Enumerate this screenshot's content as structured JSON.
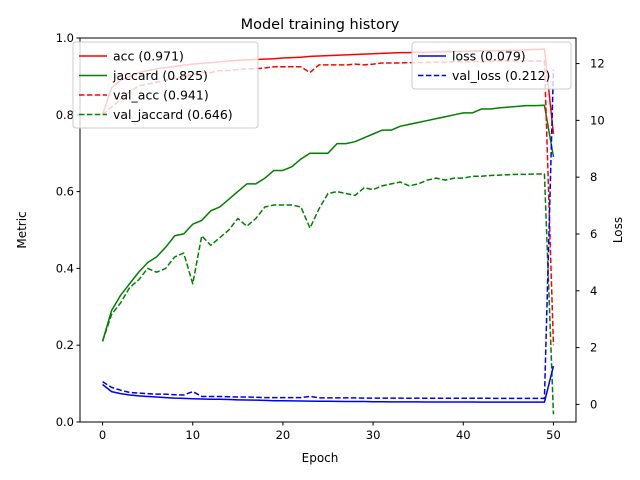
{
  "chart_data": {
    "type": "line",
    "title": "Model training history",
    "xlabel": "Epoch",
    "ylabel": "Metric",
    "y2label": "Loss",
    "xlim": [
      -2.5,
      52.5
    ],
    "ylim": [
      0,
      1
    ],
    "y2lim": [
      -0.62,
      12.9
    ],
    "xticks": [
      0,
      10,
      20,
      30,
      40,
      50
    ],
    "yticks": [
      0.0,
      0.2,
      0.4,
      0.6,
      0.8,
      1.0
    ],
    "y2ticks": [
      0,
      2,
      4,
      6,
      8,
      10,
      12
    ],
    "x": [
      0,
      1,
      2,
      3,
      4,
      5,
      6,
      7,
      8,
      9,
      10,
      11,
      12,
      13,
      14,
      15,
      16,
      17,
      18,
      19,
      20,
      21,
      22,
      23,
      24,
      25,
      26,
      27,
      28,
      29,
      30,
      31,
      32,
      33,
      34,
      35,
      36,
      37,
      38,
      39,
      40,
      41,
      42,
      43,
      44,
      45,
      46,
      47,
      48,
      49,
      50
    ],
    "legend_left": [
      "acc (0.971)",
      "jaccard (0.825)",
      "val_acc (0.941)",
      "val_jaccard (0.646)"
    ],
    "legend_right": [
      "loss (0.079)",
      "val_loss (0.212)"
    ],
    "series": [
      {
        "name": "acc",
        "label": "acc (0.971)",
        "axis": "left",
        "color": "#ff0000",
        "dash": "solid",
        "values": [
          0.8,
          0.87,
          0.89,
          0.9,
          0.91,
          0.915,
          0.92,
          0.923,
          0.926,
          0.929,
          0.932,
          0.934,
          0.936,
          0.938,
          0.94,
          0.942,
          0.943,
          0.944,
          0.945,
          0.946,
          0.948,
          0.949,
          0.95,
          0.952,
          0.953,
          0.954,
          0.955,
          0.956,
          0.957,
          0.958,
          0.959,
          0.96,
          0.961,
          0.962,
          0.962,
          0.963,
          0.963,
          0.964,
          0.964,
          0.965,
          0.965,
          0.966,
          0.966,
          0.967,
          0.967,
          0.968,
          0.968,
          0.969,
          0.97,
          0.971,
          0.75
        ]
      },
      {
        "name": "jaccard",
        "label": "jaccard (0.825)",
        "axis": "left",
        "color": "#008000",
        "dash": "solid",
        "values": [
          0.21,
          0.29,
          0.33,
          0.36,
          0.39,
          0.415,
          0.43,
          0.455,
          0.485,
          0.49,
          0.515,
          0.525,
          0.55,
          0.56,
          0.58,
          0.6,
          0.62,
          0.62,
          0.635,
          0.655,
          0.655,
          0.665,
          0.685,
          0.7,
          0.7,
          0.7,
          0.725,
          0.725,
          0.73,
          0.74,
          0.75,
          0.76,
          0.76,
          0.77,
          0.775,
          0.78,
          0.785,
          0.79,
          0.795,
          0.8,
          0.805,
          0.805,
          0.815,
          0.815,
          0.818,
          0.82,
          0.822,
          0.824,
          0.824,
          0.825,
          0.69
        ]
      },
      {
        "name": "val_acc",
        "label": "val_acc (0.941)",
        "axis": "left",
        "color": "#ff0000",
        "dash": "dashed",
        "values": [
          0.8,
          0.82,
          0.84,
          0.86,
          0.875,
          0.88,
          0.885,
          0.89,
          0.895,
          0.9,
          0.905,
          0.91,
          0.91,
          0.915,
          0.915,
          0.918,
          0.92,
          0.92,
          0.922,
          0.925,
          0.925,
          0.925,
          0.925,
          0.91,
          0.93,
          0.93,
          0.93,
          0.93,
          0.932,
          0.93,
          0.932,
          0.935,
          0.935,
          0.935,
          0.936,
          0.936,
          0.936,
          0.937,
          0.937,
          0.938,
          0.938,
          0.938,
          0.939,
          0.939,
          0.94,
          0.94,
          0.94,
          0.94,
          0.94,
          0.941,
          0.2
        ]
      },
      {
        "name": "val_jaccard",
        "label": "val_jaccard (0.646)",
        "axis": "left",
        "color": "#008000",
        "dash": "dashed",
        "values": [
          0.21,
          0.28,
          0.31,
          0.35,
          0.37,
          0.4,
          0.39,
          0.4,
          0.43,
          0.44,
          0.36,
          0.485,
          0.46,
          0.48,
          0.5,
          0.53,
          0.51,
          0.53,
          0.56,
          0.565,
          0.565,
          0.565,
          0.56,
          0.505,
          0.555,
          0.595,
          0.6,
          0.595,
          0.59,
          0.61,
          0.605,
          0.615,
          0.62,
          0.625,
          0.615,
          0.62,
          0.63,
          0.635,
          0.63,
          0.635,
          0.635,
          0.64,
          0.64,
          0.642,
          0.643,
          0.644,
          0.645,
          0.645,
          0.646,
          0.646,
          0.02
        ]
      },
      {
        "name": "loss",
        "label": "loss (0.079)",
        "axis": "right",
        "color": "#0000ff",
        "dash": "solid",
        "values": [
          0.7,
          0.45,
          0.38,
          0.33,
          0.3,
          0.28,
          0.26,
          0.24,
          0.22,
          0.21,
          0.2,
          0.19,
          0.18,
          0.18,
          0.17,
          0.16,
          0.155,
          0.15,
          0.14,
          0.13,
          0.13,
          0.125,
          0.12,
          0.115,
          0.11,
          0.11,
          0.105,
          0.1,
          0.1,
          0.1,
          0.095,
          0.095,
          0.09,
          0.09,
          0.09,
          0.088,
          0.086,
          0.085,
          0.084,
          0.083,
          0.082,
          0.082,
          0.081,
          0.081,
          0.08,
          0.08,
          0.08,
          0.079,
          0.079,
          0.079,
          1.35
        ]
      },
      {
        "name": "val_loss",
        "label": "val_loss (0.212)",
        "axis": "right",
        "color": "#0000ff",
        "dash": "dashed",
        "values": [
          0.8,
          0.6,
          0.5,
          0.42,
          0.4,
          0.38,
          0.36,
          0.36,
          0.34,
          0.33,
          0.45,
          0.28,
          0.28,
          0.28,
          0.27,
          0.26,
          0.26,
          0.25,
          0.24,
          0.24,
          0.24,
          0.24,
          0.24,
          0.28,
          0.23,
          0.23,
          0.23,
          0.23,
          0.23,
          0.22,
          0.22,
          0.22,
          0.22,
          0.22,
          0.215,
          0.22,
          0.215,
          0.215,
          0.215,
          0.215,
          0.215,
          0.214,
          0.214,
          0.214,
          0.213,
          0.213,
          0.213,
          0.213,
          0.212,
          0.212,
          11.8
        ]
      }
    ]
  }
}
